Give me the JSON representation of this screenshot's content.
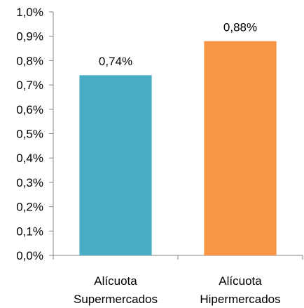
{
  "chart_data": {
    "type": "bar",
    "categories": [
      [
        "Alícuota",
        "Supermercados"
      ],
      [
        "Alícuota",
        "Hipermercados"
      ]
    ],
    "values": [
      0.74,
      0.88
    ],
    "data_labels": [
      "0,74%",
      "0,88%"
    ],
    "bar_colors": [
      "#4BACC6",
      "#F79646"
    ],
    "ylim": [
      0,
      1.0
    ],
    "yticks": [
      0.0,
      0.1,
      0.2,
      0.3,
      0.4,
      0.5,
      0.6,
      0.7,
      0.8,
      0.9,
      1.0
    ],
    "ytick_labels": [
      "0,0%",
      "0,1%",
      "0,2%",
      "0,3%",
      "0,4%",
      "0,5%",
      "0,6%",
      "0,7%",
      "0,8%",
      "0,9%",
      "1,0%"
    ],
    "title": "",
    "xlabel": "",
    "ylabel": "",
    "grid": false,
    "legend": "none"
  }
}
